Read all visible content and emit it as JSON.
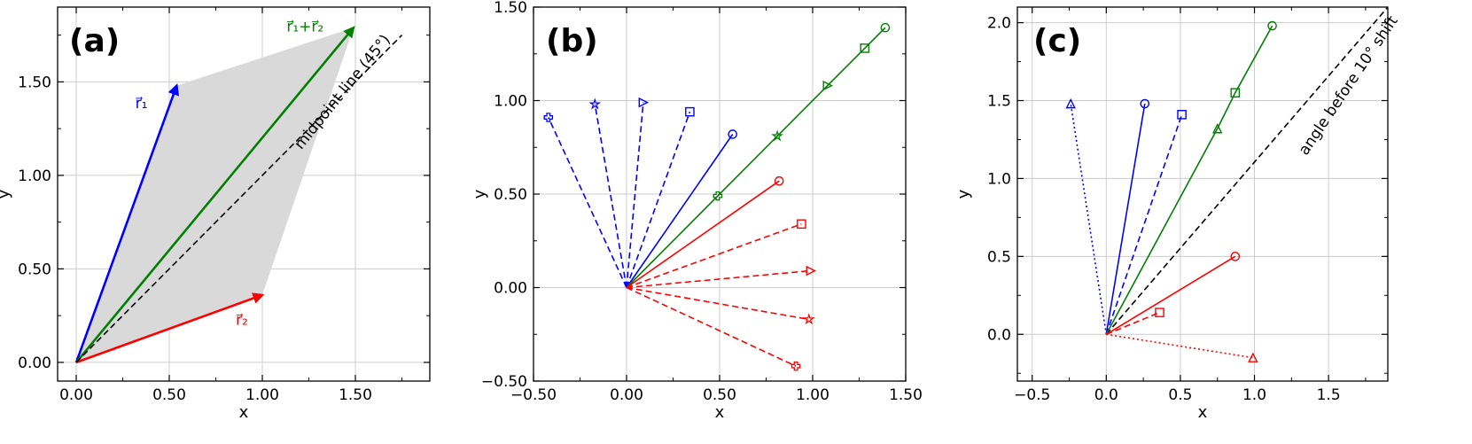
{
  "chart_data": [
    {
      "type": "line",
      "panel_label": "(a)",
      "xlabel": "x",
      "ylabel": "y",
      "xlim": [
        -0.1,
        1.9
      ],
      "ylim": [
        -0.1,
        1.9
      ],
      "xticks": [
        0,
        0.5,
        1.0,
        1.5
      ],
      "xtick_labels": [
        "0.00",
        "0.50",
        "1.00",
        "1.50"
      ],
      "xminor": [
        0.25,
        0.75,
        1.25,
        1.75
      ],
      "yticks": [
        0,
        0.5,
        1.0,
        1.5
      ],
      "ytick_labels": [
        "0.00",
        "0.50",
        "1.00",
        "1.50"
      ],
      "yminor": [
        0.25,
        0.75,
        1.25,
        1.75
      ],
      "grid": true,
      "polygon": {
        "points": [
          [
            0,
            0
          ],
          [
            0.54,
            1.48
          ],
          [
            1.49,
            1.79
          ],
          [
            1.0,
            0.36
          ]
        ],
        "color": "#d9d9d9"
      },
      "series": [
        {
          "name": "r1",
          "x": [
            0,
            0.54
          ],
          "y": [
            0,
            1.48
          ],
          "color": "#0000ff",
          "style": "solid",
          "arrow": true
        },
        {
          "name": "r2",
          "x": [
            0,
            1.0
          ],
          "y": [
            0,
            0.36
          ],
          "color": "#ff0000",
          "style": "solid",
          "arrow": true
        },
        {
          "name": "r1+r2",
          "x": [
            0,
            1.49
          ],
          "y": [
            0,
            1.79
          ],
          "color": "#008000",
          "style": "solid",
          "arrow": true
        },
        {
          "x": [
            0,
            1.75
          ],
          "y": [
            0,
            1.75
          ],
          "color": "#000000",
          "style": "dashed",
          "width": 1.6
        }
      ],
      "annotations": [
        {
          "text": "r⃗₁",
          "x": 0.35,
          "y": 1.36,
          "color": "#0000ff",
          "rotate": 0,
          "anchor": "middle"
        },
        {
          "text": "r⃗₂",
          "x": 0.89,
          "y": 0.2,
          "color": "#ff0000",
          "rotate": 0,
          "anchor": "middle"
        },
        {
          "text": "r⃗₁+r⃗₂",
          "x": 1.23,
          "y": 1.77,
          "color": "#008000",
          "rotate": 0,
          "anchor": "middle"
        },
        {
          "text": "midpoint line (45°)",
          "x": 1.45,
          "y": 1.43,
          "color": "#000000",
          "rotate": -51,
          "anchor": "middle"
        }
      ]
    },
    {
      "type": "line",
      "panel_label": "(b)",
      "xlabel": "x",
      "ylabel": "y",
      "xlim": [
        -0.5,
        1.5
      ],
      "ylim": [
        -0.5,
        1.5
      ],
      "xticks": [
        -0.5,
        0,
        0.5,
        1.0,
        1.5
      ],
      "xtick_labels": [
        "−0.50",
        "0.00",
        "0.50",
        "1.00",
        "1.50"
      ],
      "xminor": [
        -0.25,
        0.25,
        0.75,
        1.25
      ],
      "yticks": [
        -0.5,
        0,
        0.5,
        1.0,
        1.5
      ],
      "ytick_labels": [
        "−0.50",
        "0.00",
        "0.50",
        "1.00",
        "1.50"
      ],
      "yminor": [
        -0.25,
        0.25,
        0.75,
        1.25
      ],
      "grid": true,
      "series": [
        {
          "x": [
            0,
            0.57
          ],
          "y": [
            0,
            0.82
          ],
          "color": "#0000ff",
          "style": "solid",
          "marker": "circle"
        },
        {
          "x": [
            0,
            0.34
          ],
          "y": [
            0,
            0.94
          ],
          "color": "#0000ff",
          "style": "dashed",
          "marker": "square"
        },
        {
          "x": [
            0,
            0.09
          ],
          "y": [
            0,
            0.99
          ],
          "color": "#0000ff",
          "style": "dashed",
          "marker": "triangle-right"
        },
        {
          "x": [
            0,
            -0.17
          ],
          "y": [
            0,
            0.98
          ],
          "color": "#0000ff",
          "style": "dashed",
          "marker": "star"
        },
        {
          "x": [
            0,
            -0.42
          ],
          "y": [
            0,
            0.91
          ],
          "color": "#0000ff",
          "style": "dashed",
          "marker": "plus"
        },
        {
          "x": [
            0,
            0.49,
            0.81,
            1.08,
            1.28,
            1.39
          ],
          "y": [
            0,
            0.49,
            0.81,
            1.08,
            1.28,
            1.39
          ],
          "color": "#008000",
          "style": "solid",
          "markers": [
            "none",
            "plus",
            "star",
            "triangle-right",
            "square",
            "circle"
          ]
        },
        {
          "x": [
            0,
            0.82
          ],
          "y": [
            0,
            0.57
          ],
          "color": "#ff0000",
          "style": "solid",
          "marker": "circle"
        },
        {
          "x": [
            0,
            0.94
          ],
          "y": [
            0,
            0.34
          ],
          "color": "#ff0000",
          "style": "dashed",
          "marker": "square"
        },
        {
          "x": [
            0,
            0.99
          ],
          "y": [
            0,
            0.09
          ],
          "color": "#ff0000",
          "style": "dashed",
          "marker": "triangle-right"
        },
        {
          "x": [
            0,
            0.98
          ],
          "y": [
            0,
            -0.17
          ],
          "color": "#ff0000",
          "style": "dashed",
          "marker": "star"
        },
        {
          "x": [
            0,
            0.91
          ],
          "y": [
            0,
            -0.42
          ],
          "color": "#ff0000",
          "style": "dashed",
          "marker": "plus"
        }
      ]
    },
    {
      "type": "line",
      "panel_label": "(c)",
      "xlabel": "x",
      "ylabel": "y",
      "xlim": [
        -0.6,
        1.9
      ],
      "ylim": [
        -0.3,
        2.1
      ],
      "xticks": [
        -0.5,
        0,
        0.5,
        1.0,
        1.5
      ],
      "xtick_labels": [
        "−0.5",
        "0.0",
        "0.5",
        "1.0",
        "1.5"
      ],
      "xminor": [
        -0.25,
        0.25,
        0.75,
        1.25,
        1.75
      ],
      "yticks": [
        0,
        0.5,
        1.0,
        1.5,
        2.0
      ],
      "ytick_labels": [
        "0.0",
        "0.5",
        "1.0",
        "1.5",
        "2.0"
      ],
      "yminor": [
        -0.25,
        0.25,
        0.75,
        1.25,
        1.75
      ],
      "grid": true,
      "series": [
        {
          "x": [
            0,
            1.9
          ],
          "y": [
            0,
            2.1
          ],
          "color": "#000000",
          "style": "dashed",
          "width": 1.6
        },
        {
          "x": [
            0,
            0.26
          ],
          "y": [
            0,
            1.48
          ],
          "color": "#0000ff",
          "style": "solid",
          "marker": "circle"
        },
        {
          "x": [
            0,
            0.51
          ],
          "y": [
            0,
            1.41
          ],
          "color": "#0000ff",
          "style": "dashed",
          "marker": "square"
        },
        {
          "x": [
            0,
            -0.24
          ],
          "y": [
            0,
            1.48
          ],
          "color": "#0000ff",
          "style": "dotted",
          "marker": "triangle-up"
        },
        {
          "x": [
            0,
            0.75,
            0.87,
            1.12
          ],
          "y": [
            0,
            1.32,
            1.55,
            1.98
          ],
          "color": "#008000",
          "style": "solid",
          "markers": [
            "none",
            "triangle-up",
            "square",
            "circle"
          ]
        },
        {
          "x": [
            0,
            0.87
          ],
          "y": [
            0,
            0.5
          ],
          "color": "#ff0000",
          "style": "solid",
          "marker": "circle"
        },
        {
          "x": [
            0,
            0.36
          ],
          "y": [
            0,
            0.14
          ],
          "color": "#ff0000",
          "style": "dashed",
          "marker": "square"
        },
        {
          "x": [
            0,
            0.99
          ],
          "y": [
            0,
            -0.15
          ],
          "color": "#ff0000",
          "style": "dotted",
          "marker": "triangle-up"
        }
      ],
      "annotations": [
        {
          "text": "angle before 10° shift",
          "x": 1.66,
          "y": 1.58,
          "color": "#000000",
          "rotate": -56,
          "anchor": "middle"
        }
      ]
    }
  ]
}
